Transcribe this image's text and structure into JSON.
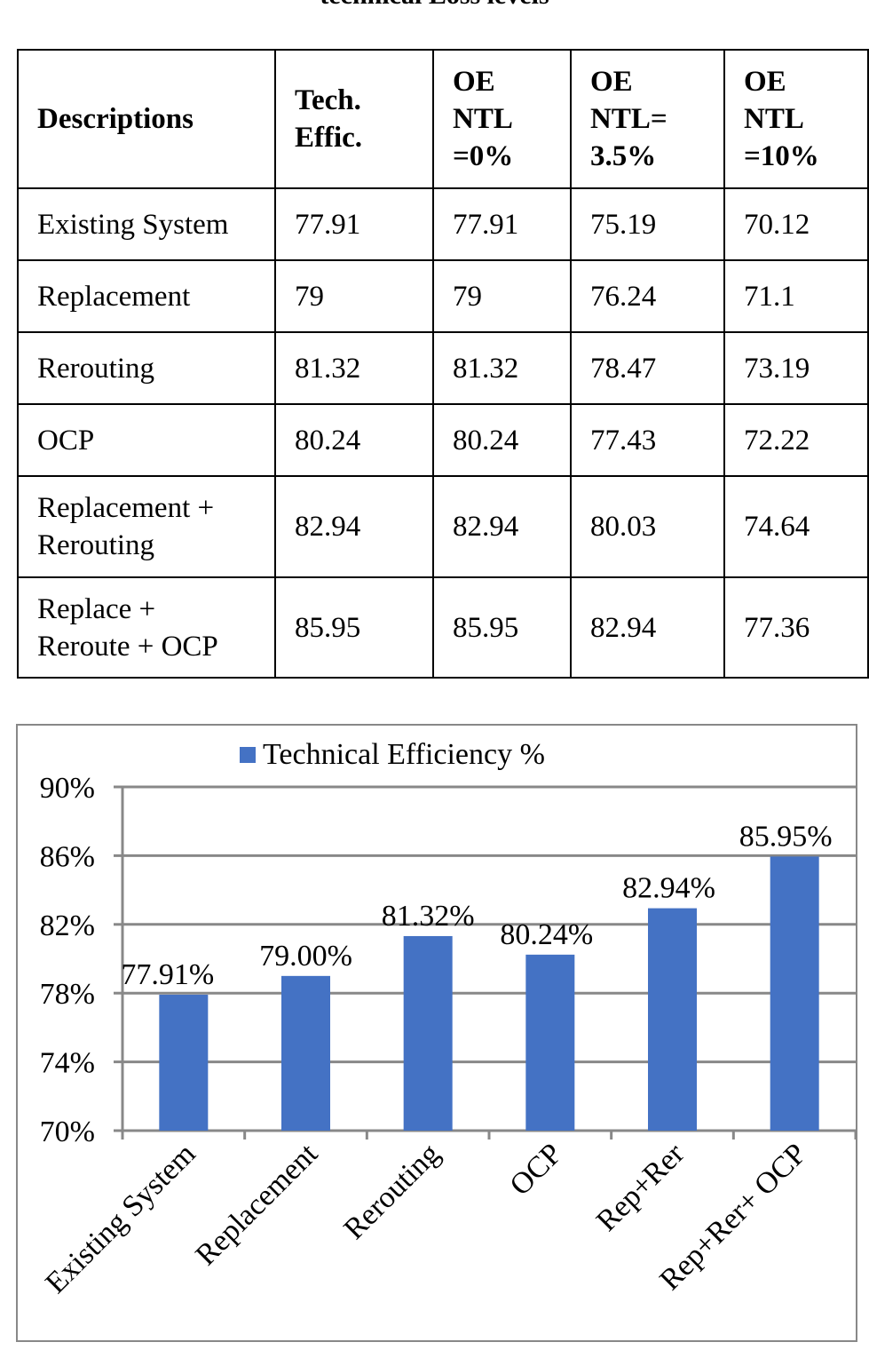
{
  "caption": "technical Loss levels",
  "table": {
    "headers": [
      "Descriptions",
      "Tech. Effic.",
      "OE NTL =0%",
      "OE NTL= 3.5%",
      "OE NTL =10%"
    ],
    "header_lines": [
      [
        "Descriptions"
      ],
      [
        "Tech.",
        "Effic."
      ],
      [
        "OE",
        "NTL",
        "=0%"
      ],
      [
        "OE",
        "NTL=",
        "3.5%"
      ],
      [
        "OE",
        "NTL",
        "=10%"
      ]
    ],
    "rows": [
      [
        "Existing System",
        "77.91",
        "77.91",
        "75.19",
        "70.12"
      ],
      [
        "Replacement",
        "79",
        "79",
        "76.24",
        "71.1"
      ],
      [
        "Rerouting",
        "81.32",
        "81.32",
        "78.47",
        "73.19"
      ],
      [
        "OCP",
        "80.24",
        "80.24",
        "77.43",
        "72.22"
      ],
      [
        "Replacement + Rerouting",
        "82.94",
        "82.94",
        "80.03",
        "74.64"
      ],
      [
        "Replace + Reroute + OCP",
        "85.95",
        "85.95",
        "82.94",
        "77.36"
      ]
    ],
    "row_lines": [
      [
        "Existing System"
      ],
      [
        "Replacement"
      ],
      [
        "Rerouting"
      ],
      [
        "OCP"
      ],
      [
        "Replacement +",
        "Rerouting"
      ],
      [
        "Replace +",
        "Reroute + OCP"
      ]
    ]
  },
  "chart_data": {
    "type": "bar",
    "categories": [
      "Existing System",
      "Replacement",
      "Rerouting",
      "OCP",
      "Rep+Rer",
      "Rep+Rer+ OCP"
    ],
    "series": [
      {
        "name": "Technical Efficiency %",
        "values": [
          77.91,
          79.0,
          81.32,
          80.24,
          82.94,
          85.95
        ],
        "color": "#4472C4"
      }
    ],
    "data_labels": [
      "77.91%",
      "79.00%",
      "81.32%",
      "80.24%",
      "82.94%",
      "85.95%"
    ],
    "ylim": [
      70,
      90
    ],
    "yticks": [
      70,
      74,
      78,
      82,
      86,
      90
    ],
    "ytick_labels": [
      "70%",
      "74%",
      "78%",
      "82%",
      "86%",
      "90%"
    ],
    "grid": true,
    "legend": "top",
    "xlabel": "",
    "ylabel": ""
  }
}
